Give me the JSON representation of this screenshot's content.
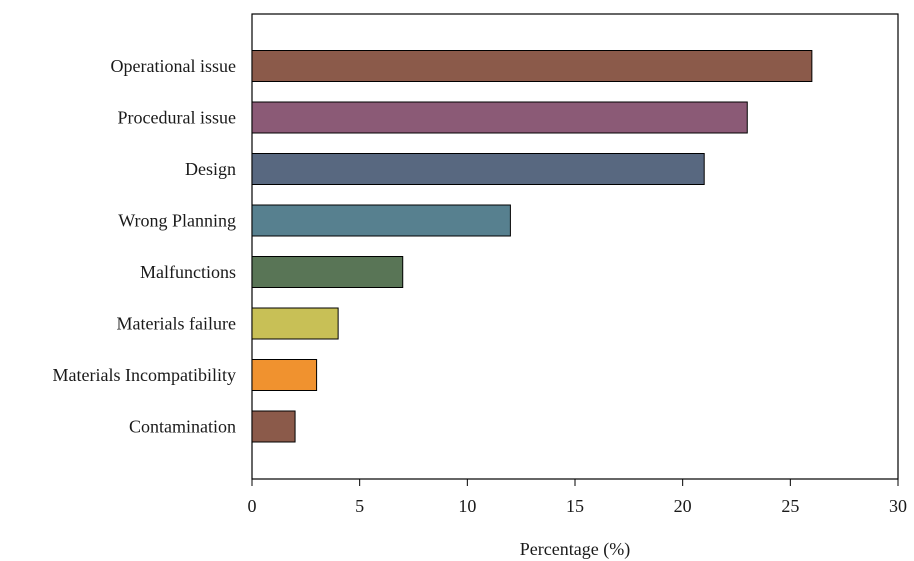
{
  "chart_data": {
    "type": "bar",
    "orientation": "horizontal",
    "categories": [
      "Operational issue",
      "Procedural issue",
      "Design",
      "Wrong Planning",
      "Malfunctions",
      "Materials failure",
      "Materials Incompatibility",
      "Contamination"
    ],
    "values": [
      26,
      23,
      21,
      12,
      7,
      4,
      3,
      2
    ],
    "colors": [
      "#8B5A4A",
      "#8B5A76",
      "#586880",
      "#57808F",
      "#597556",
      "#C8C056",
      "#F0922F",
      "#8B5A4A"
    ],
    "xlabel": "Percentage (%)",
    "ylabel": "",
    "xlim": [
      0,
      30
    ],
    "xticks": [
      0,
      5,
      10,
      15,
      20,
      25,
      30
    ],
    "grid": false,
    "legend": "none"
  }
}
